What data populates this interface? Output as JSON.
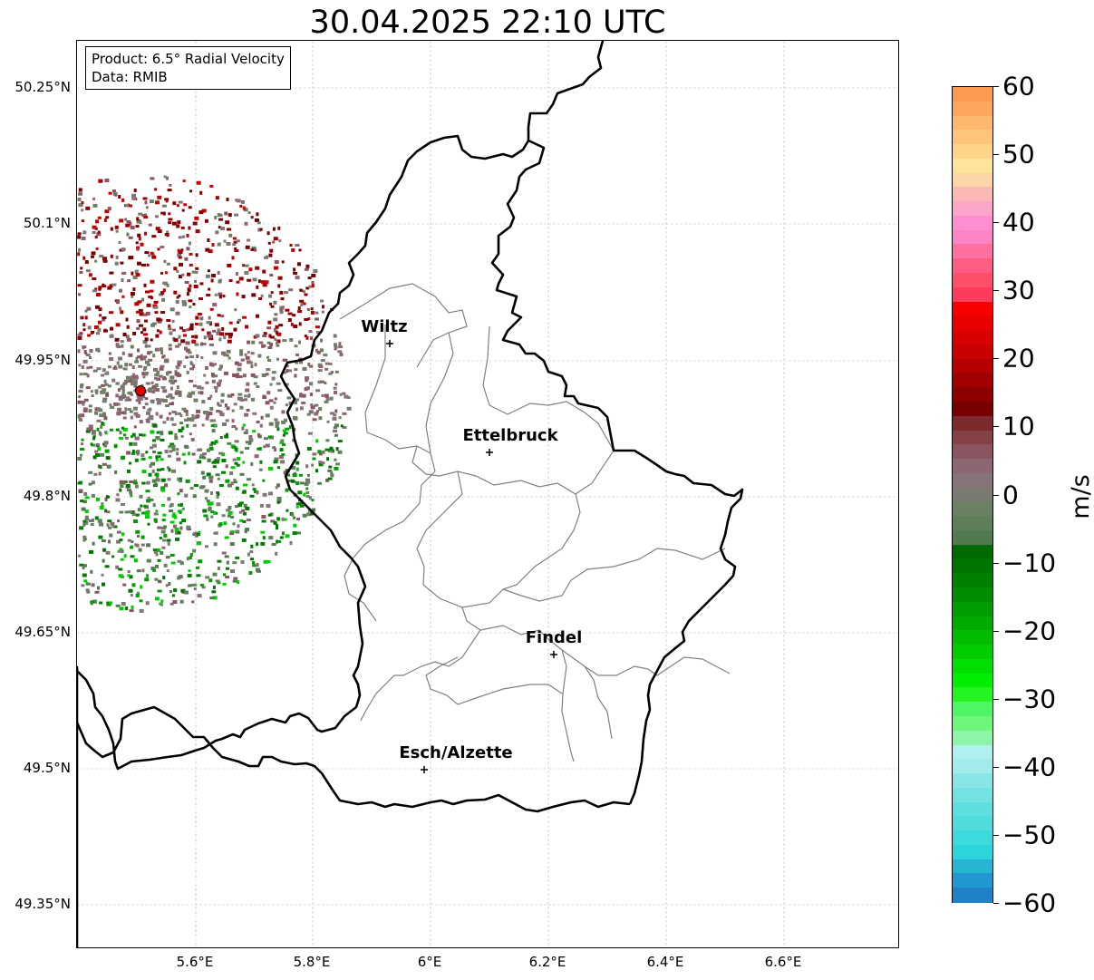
{
  "title": "30.04.2025 22:10 UTC",
  "infobox": {
    "product": "Product: 6.5° Radial Velocity",
    "data_source": "Data: RMIB"
  },
  "map": {
    "lat_labels": [
      "50.25°N",
      "50.1°N",
      "49.95°N",
      "49.8°N",
      "49.65°N",
      "49.5°N",
      "49.35°N"
    ],
    "lon_labels": [
      "5.6°E",
      "5.8°E",
      "6°E",
      "6.2°E",
      "6.4°E",
      "6.6°E"
    ],
    "cities": [
      {
        "name": "Wiltz"
      },
      {
        "name": "Ettelbruck"
      },
      {
        "name": "Findel"
      },
      {
        "name": "Esch/Alzette"
      }
    ],
    "colors": {
      "border": "#000000",
      "districts": "#808080",
      "grid": "#bbbbbb",
      "radar_site": "#e00000"
    }
  },
  "colorbar": {
    "unit": "m/s",
    "range": [
      -60,
      60
    ],
    "tick_labels": [
      "60",
      "50",
      "40",
      "30",
      "20",
      "10",
      "0",
      "−10",
      "−20",
      "−30",
      "−40",
      "−50",
      "−60"
    ],
    "colors_top_to_bottom": [
      "#fd9a4f",
      "#fda75d",
      "#feb86e",
      "#fdc47c",
      "#fed38a",
      "#fee39a",
      "#fdd5a6",
      "#fab8b7",
      "#fda5c9",
      "#fd8fd0",
      "#fd83c4",
      "#fd70a0",
      "#fd5d83",
      "#fd4f6a",
      "#fd3c5b",
      "#f80000",
      "#e80000",
      "#d80000",
      "#c80000",
      "#b40000",
      "#a00000",
      "#8c0000",
      "#780000",
      "#7d2a2e",
      "#844246",
      "#8a5560",
      "#8c6670",
      "#867478",
      "#7a7a72",
      "#6c8064",
      "#5f7e5c",
      "#527a50",
      "#006a00",
      "#007400",
      "#008000",
      "#008e00",
      "#009c00",
      "#00ab00",
      "#00bc00",
      "#00cc00",
      "#00df00",
      "#00ef00",
      "#22f522",
      "#4ef564",
      "#6ef57c",
      "#8ef5a8",
      "#b2f0f0",
      "#a2ecec",
      "#8ae6e6",
      "#72e2e2",
      "#5edede",
      "#4edcdc",
      "#3cdada",
      "#2cd4dc",
      "#26b6d4",
      "#2298d0",
      "#1f82c8"
    ]
  }
}
